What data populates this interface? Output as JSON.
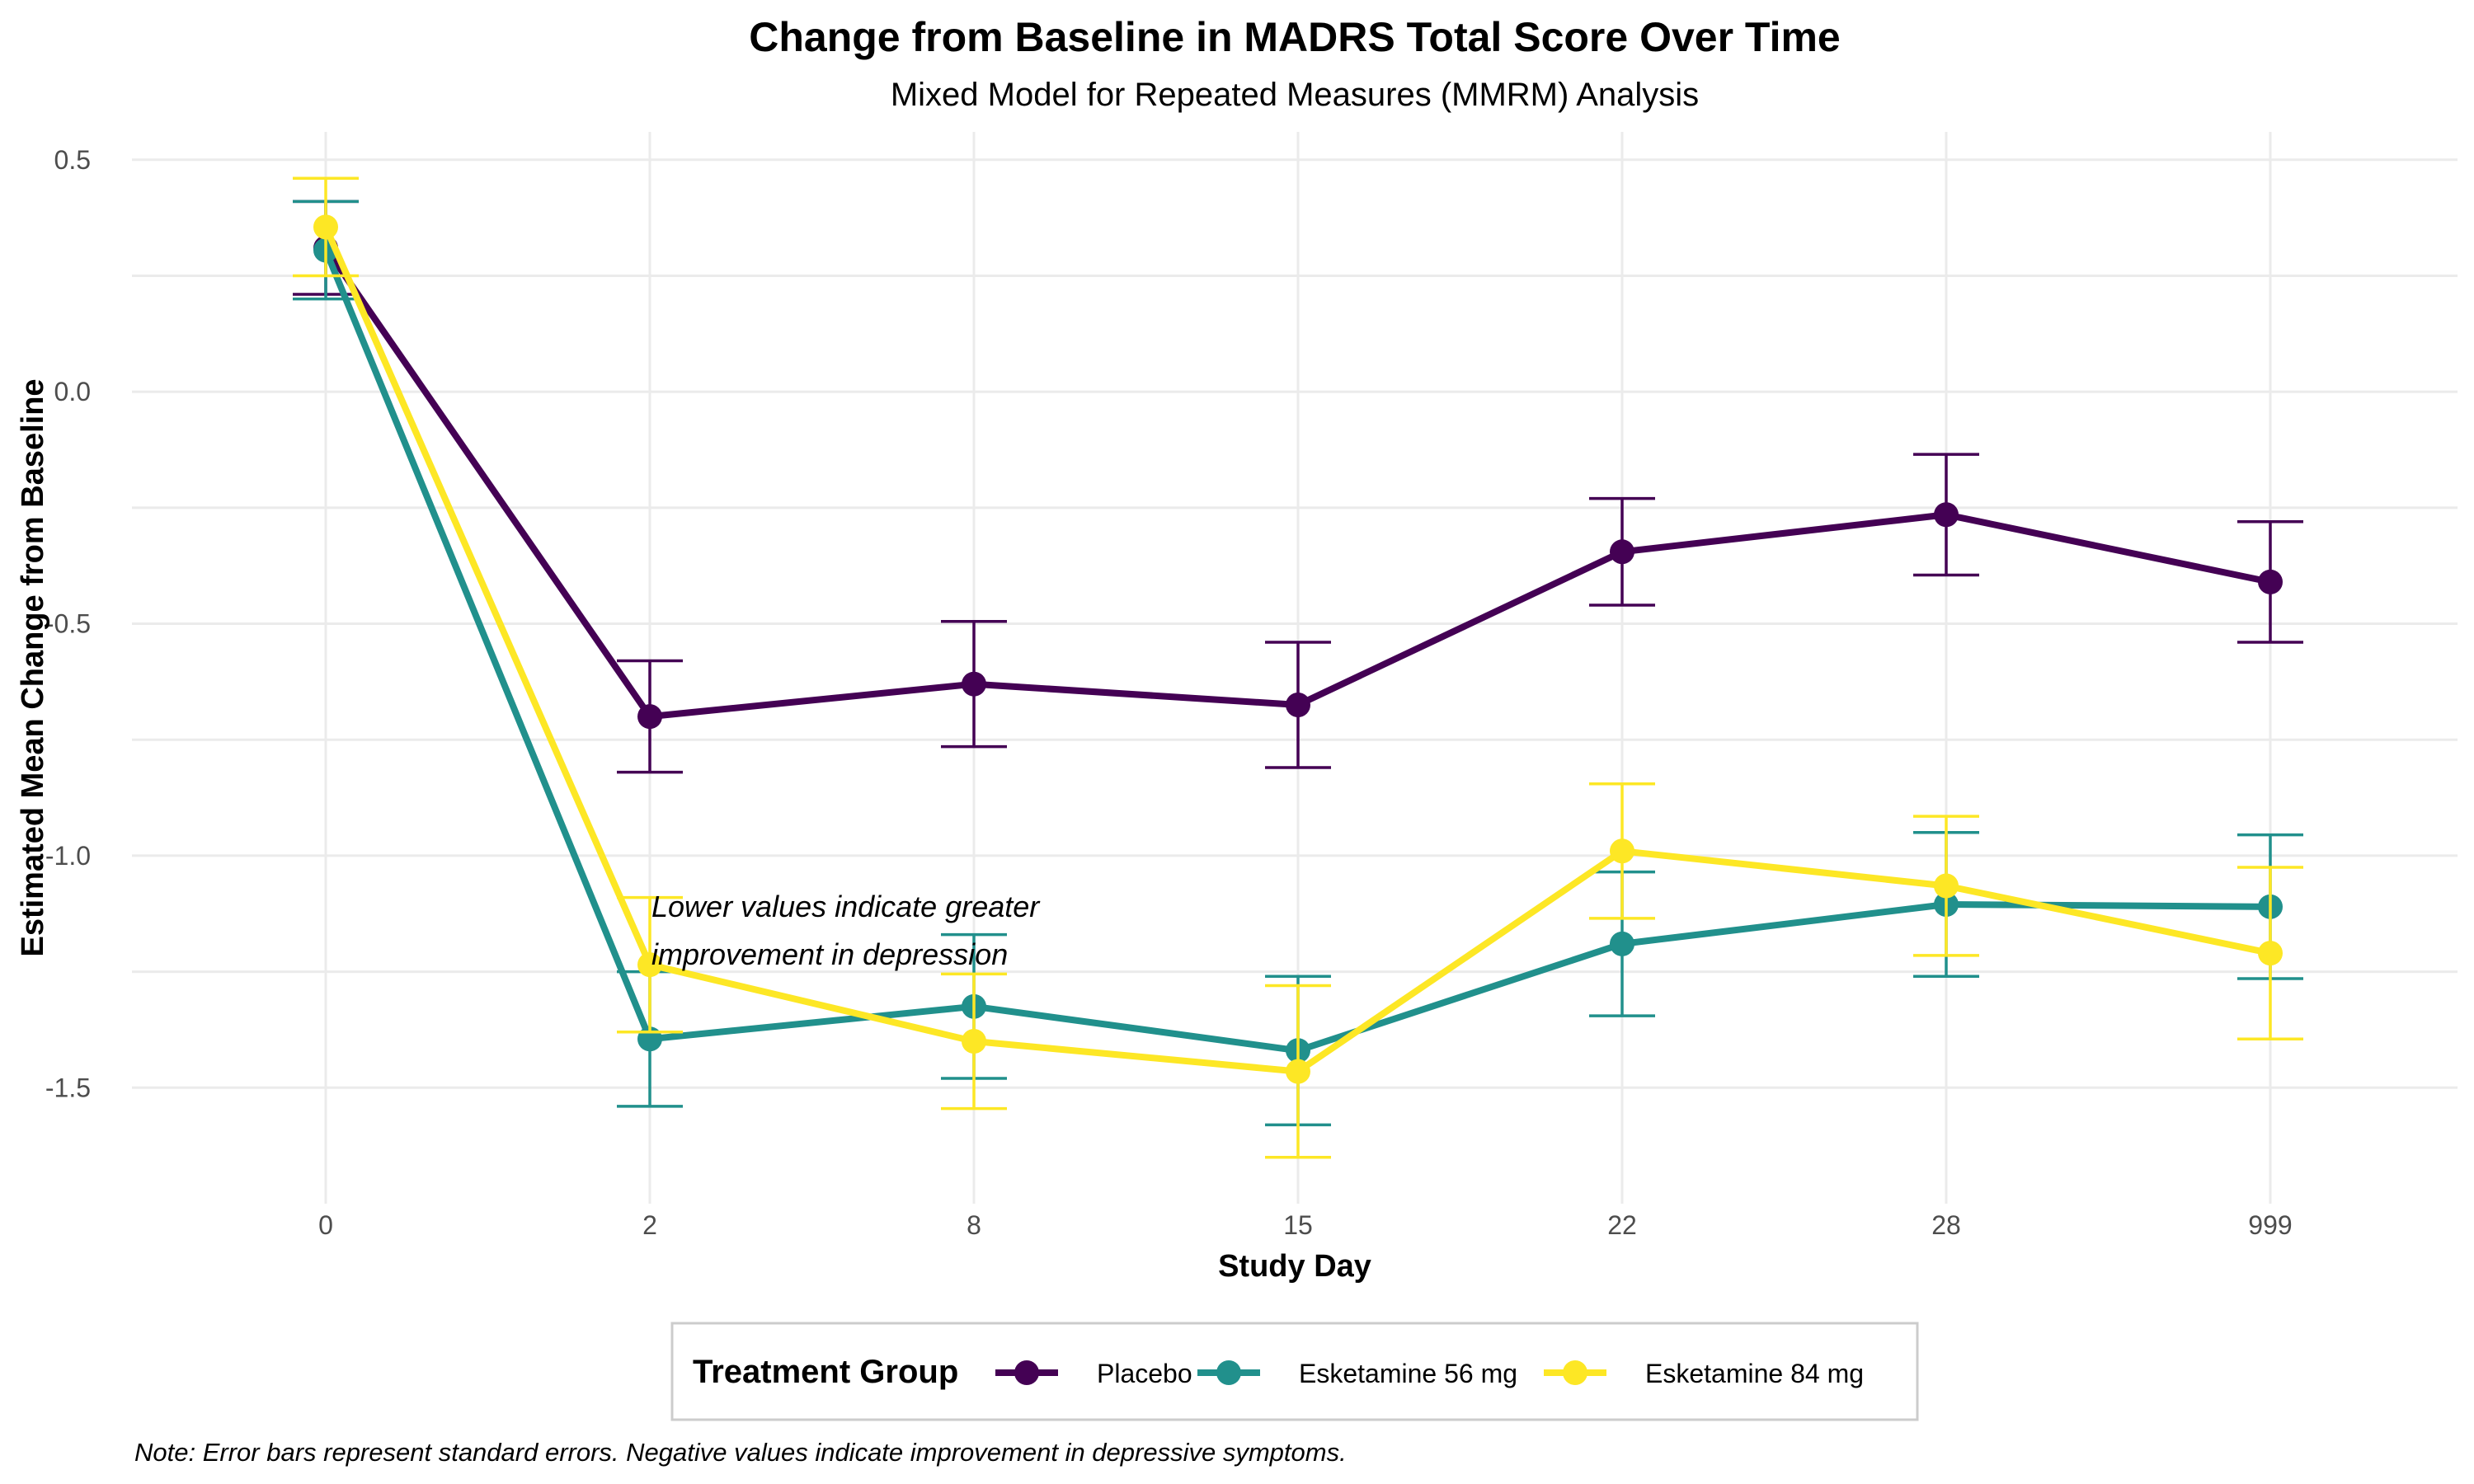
{
  "chart_data": {
    "type": "line",
    "title": "Change from Baseline in MADRS Total Score Over Time",
    "subtitle": "Mixed Model for Repeated Measures (MMRM) Analysis",
    "xlabel": "Study Day",
    "ylabel": "Estimated Mean Change from Baseline",
    "categories": [
      "0",
      "2",
      "8",
      "15",
      "22",
      "28",
      "999"
    ],
    "ylim": [
      -1.75,
      0.56
    ],
    "yticks": [
      0.5,
      0.0,
      -0.5,
      -1.0,
      -1.5
    ],
    "ytick_labels": [
      "0.5",
      "0.0",
      "-0.5",
      "-1.0",
      "-1.5"
    ],
    "grid": true,
    "legend": {
      "title": "Treatment Group",
      "placement": "bottom"
    },
    "series": [
      {
        "name": "Placebo",
        "color": "#440154",
        "values": [
          0.31,
          -0.7,
          -0.63,
          -0.675,
          -0.345,
          -0.265,
          -0.41
        ],
        "se": [
          0.1,
          0.12,
          0.135,
          0.135,
          0.115,
          0.13,
          0.13
        ]
      },
      {
        "name": "Esketamine 56 mg",
        "color": "#21908C",
        "values": [
          0.305,
          -1.395,
          -1.325,
          -1.42,
          -1.19,
          -1.105,
          -1.11
        ],
        "se": [
          0.105,
          0.145,
          0.155,
          0.16,
          0.155,
          0.155,
          0.155
        ]
      },
      {
        "name": "Esketamine 84 mg",
        "color": "#FDE725",
        "values": [
          0.355,
          -1.235,
          -1.4,
          -1.465,
          -0.99,
          -1.065,
          -1.21
        ],
        "se": [
          0.105,
          0.145,
          0.145,
          0.185,
          0.145,
          0.15,
          0.185
        ]
      }
    ],
    "annotation": [
      "Lower values indicate greater",
      "improvement in depression"
    ],
    "caption": "Note: Error bars represent standard errors. Negative values indicate improvement in depressive symptoms."
  }
}
